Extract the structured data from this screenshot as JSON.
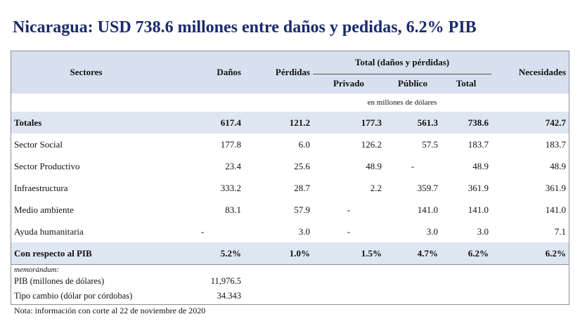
{
  "title": "Nicaragua: USD 738.6 millones entre daños y pedidas, 6.2% PIB",
  "table": {
    "headers": {
      "sectores": "Sectores",
      "danos": "Daños",
      "perdidas": "Pérdidas",
      "total_group": "Total (daños y pérdidas)",
      "privado": "Privado",
      "publico": "Público",
      "total": "Total",
      "necesidades": "Necesidades"
    },
    "unit_note": "en millones de dólares",
    "rows": [
      {
        "sector": "Totales",
        "danos": "617.4",
        "perdidas": "121.2",
        "privado": "177.3",
        "publico": "561.3",
        "total": "738.6",
        "necesidades": "742.7"
      },
      {
        "sector": "Sector Social",
        "danos": "177.8",
        "perdidas": "6.0",
        "privado": "126.2",
        "publico": "57.5",
        "total": "183.7",
        "necesidades": "183.7"
      },
      {
        "sector": "Sector Productivo",
        "danos": "23.4",
        "perdidas": "25.6",
        "privado": "48.9",
        "publico": "-",
        "total": "48.9",
        "necesidades": "48.9"
      },
      {
        "sector": "Infraestructura",
        "danos": "333.2",
        "perdidas": "28.7",
        "privado": "2.2",
        "publico": "359.7",
        "total": "361.9",
        "necesidades": "361.9"
      },
      {
        "sector": "Medio ambiente",
        "danos": "83.1",
        "perdidas": "57.9",
        "privado": "-",
        "publico": "141.0",
        "total": "141.0",
        "necesidades": "141.0"
      },
      {
        "sector": "Ayuda humanitaria",
        "danos": "-",
        "perdidas": "3.0",
        "privado": "-",
        "publico": "3.0",
        "total": "3.0",
        "necesidades": "7.1"
      },
      {
        "sector": "Con respecto al PIB",
        "danos": "5.2%",
        "perdidas": "1.0%",
        "privado": "1.5%",
        "publico": "4.7%",
        "total": "6.2%",
        "necesidades": "6.2%"
      }
    ],
    "memo": {
      "label": "memorándum:",
      "pib_label": "PIB (millones de dólares)",
      "pib_value": "11,976.5",
      "tc_label": "Tipo cambio (dólar por córdobas)",
      "tc_value": "34.343"
    }
  },
  "note": "Nota: información con corte al 22 de noviembre de 2020",
  "colors": {
    "title": "#1a2a6c",
    "header_bg": "#d6e0ee",
    "band_bg": "#dde6f1"
  }
}
